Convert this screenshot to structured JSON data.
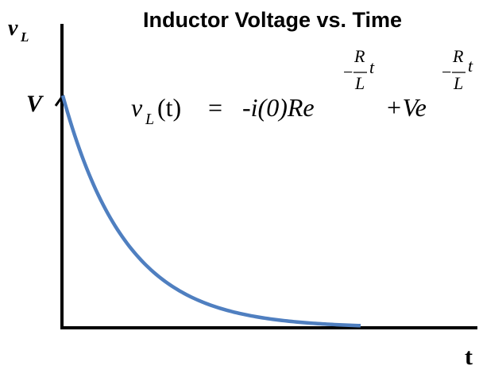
{
  "title": "Inductor Voltage vs. Time",
  "axes": {
    "y_label": {
      "base": "v",
      "sub": "L"
    },
    "y_marker": "V",
    "x_label": "t"
  },
  "equation": {
    "lhs": {
      "base": "v",
      "sub": "L",
      "arg": "(t)"
    },
    "equals": "=",
    "term1": {
      "coef": "-i(0)Re",
      "exponent": {
        "sign": "−",
        "num": "R",
        "den": "L",
        "var": "t"
      }
    },
    "term2": {
      "coef": "+Ve",
      "exponent": {
        "sign": "−",
        "num": "R",
        "den": "L",
        "var": "t"
      }
    }
  }
}
